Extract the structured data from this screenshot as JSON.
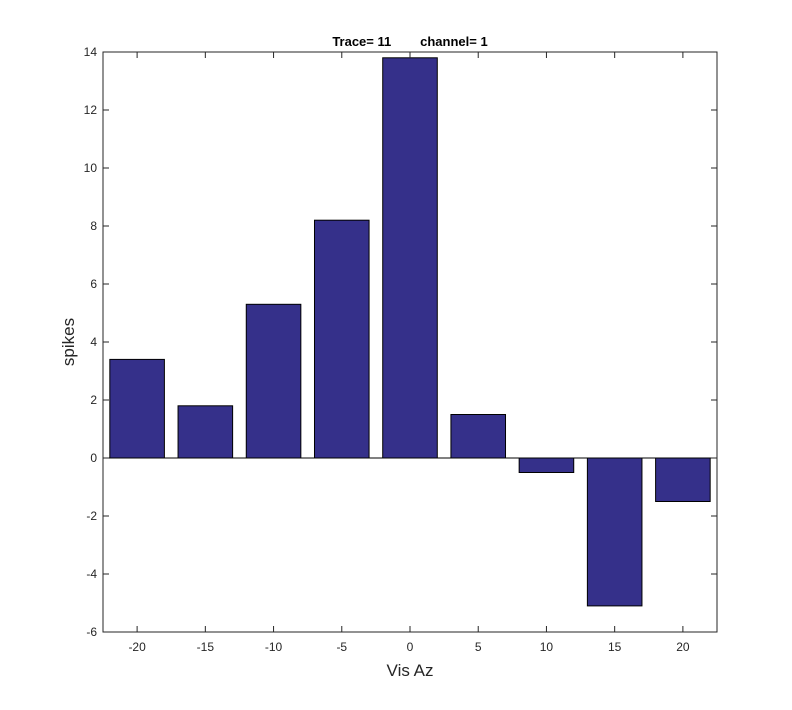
{
  "chart_data": {
    "type": "bar",
    "title": "Trace= 11        channel= 1",
    "xlabel": "Vis Az",
    "ylabel": "spikes",
    "categories": [
      -20,
      -15,
      -10,
      -5,
      0,
      5,
      10,
      15,
      20
    ],
    "values": [
      3.4,
      1.8,
      5.3,
      8.2,
      13.8,
      1.5,
      -0.5,
      -5.1,
      -1.5
    ],
    "xlim": [
      -22.5,
      22.5
    ],
    "ylim": [
      -6,
      14
    ],
    "yticks": [
      -6,
      -4,
      -2,
      0,
      2,
      4,
      6,
      8,
      10,
      12,
      14
    ],
    "xticks": [
      -20,
      -15,
      -10,
      -5,
      0,
      5,
      10,
      15,
      20
    ],
    "bar_width": 4,
    "bar_color": "#35308a",
    "edge_color": "#000000",
    "grid": false
  }
}
